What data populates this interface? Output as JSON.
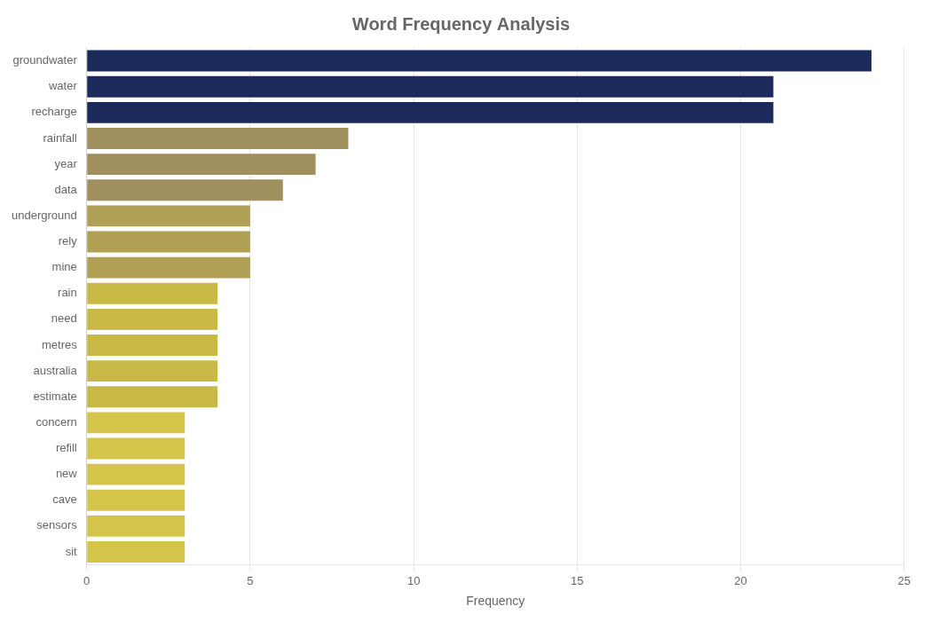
{
  "chart_data": {
    "type": "bar",
    "orientation": "horizontal",
    "title": "Word Frequency Analysis",
    "xlabel": "Frequency",
    "categories": [
      "groundwater",
      "water",
      "recharge",
      "rainfall",
      "year",
      "data",
      "underground",
      "rely",
      "mine",
      "rain",
      "need",
      "metres",
      "australia",
      "estimate",
      "concern",
      "refill",
      "new",
      "cave",
      "sensors",
      "sit"
    ],
    "values": [
      24,
      21,
      21,
      8,
      7,
      6,
      5,
      5,
      5,
      4,
      4,
      4,
      4,
      4,
      3,
      3,
      3,
      3,
      3,
      3
    ],
    "colors": [
      "#1b2a5a",
      "#1b2a5a",
      "#1b2a5a",
      "#a09060",
      "#a09060",
      "#a09060",
      "#b0a055",
      "#b0a055",
      "#b0a055",
      "#c8b845",
      "#c8b845",
      "#c8b845",
      "#c8b845",
      "#c8b845",
      "#d4c44a",
      "#d4c44a",
      "#d4c44a",
      "#d4c44a",
      "#d4c44a",
      "#d4c44a"
    ],
    "xlim": [
      0,
      25
    ],
    "xticks": [
      0,
      5,
      10,
      15,
      20,
      25
    ],
    "grid": true
  }
}
